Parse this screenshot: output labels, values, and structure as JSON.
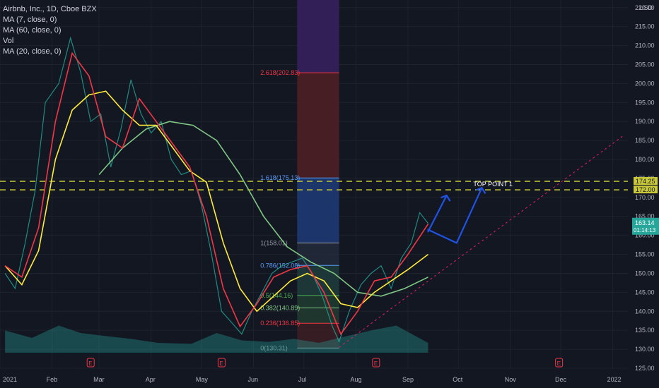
{
  "legend": {
    "title": "Airbnb, Inc., 1D, Cboe BZX",
    "ma7": "MA (7, close, 0)",
    "ma60": "MA (60, close, 0)",
    "vol": "Vol",
    "ma20": "MA (20, close, 0)"
  },
  "price_axis": {
    "currency": "USD",
    "current_price": "163.14",
    "countdown": "01:14:13",
    "level_high": "174.25",
    "level_low": "172.00"
  },
  "chart_data": {
    "type": "candlestick",
    "title": "Airbnb, Inc., 1D, Cboe BZX",
    "ylim": [
      125,
      222
    ],
    "yticks": [
      "125.00",
      "130.00",
      "135.00",
      "140.00",
      "145.00",
      "150.00",
      "155.00",
      "160.00",
      "165.00",
      "170.00",
      "175.00",
      "180.00",
      "185.00",
      "190.00",
      "195.00",
      "200.00",
      "205.00",
      "210.00",
      "215.00",
      "220.00"
    ],
    "xticks": [
      "2021",
      "Feb",
      "Mar",
      "Apr",
      "May",
      "Jun",
      "Jul",
      "Aug",
      "Sep",
      "Oct",
      "Nov",
      "Dec",
      "2022"
    ],
    "grid": true,
    "price_path": [
      [
        "2021-01-04",
        150.0
      ],
      [
        "2021-01-10",
        146.0
      ],
      [
        "2021-01-16",
        158.0
      ],
      [
        "2021-01-22",
        172.0
      ],
      [
        "2021-01-28",
        195.0
      ],
      [
        "2021-02-05",
        200.0
      ],
      [
        "2021-02-12",
        212.0
      ],
      [
        "2021-02-18",
        203.0
      ],
      [
        "2021-02-24",
        190.0
      ],
      [
        "2021-03-02",
        192.0
      ],
      [
        "2021-03-08",
        178.0
      ],
      [
        "2021-03-14",
        188.0
      ],
      [
        "2021-03-20",
        201.0
      ],
      [
        "2021-03-26",
        192.0
      ],
      [
        "2021-04-01",
        187.0
      ],
      [
        "2021-04-07",
        190.0
      ],
      [
        "2021-04-13",
        180.0
      ],
      [
        "2021-04-19",
        176.0
      ],
      [
        "2021-04-25",
        177.0
      ],
      [
        "2021-05-01",
        168.0
      ],
      [
        "2021-05-07",
        155.0
      ],
      [
        "2021-05-13",
        140.0
      ],
      [
        "2021-05-19",
        137.0
      ],
      [
        "2021-05-25",
        134.0
      ],
      [
        "2021-05-31",
        140.0
      ],
      [
        "2021-06-06",
        145.0
      ],
      [
        "2021-06-12",
        150.0
      ],
      [
        "2021-06-18",
        152.0
      ],
      [
        "2021-06-24",
        153.0
      ],
      [
        "2021-06-30",
        154.0
      ],
      [
        "2021-07-06",
        150.0
      ],
      [
        "2021-07-12",
        144.0
      ],
      [
        "2021-07-18",
        136.0
      ],
      [
        "2021-07-22",
        132.0
      ],
      [
        "2021-07-28",
        140.0
      ],
      [
        "2021-08-04",
        147.0
      ],
      [
        "2021-08-10",
        150.0
      ],
      [
        "2021-08-16",
        152.0
      ],
      [
        "2021-08-22",
        146.0
      ],
      [
        "2021-08-28",
        154.0
      ],
      [
        "2021-09-03",
        158.0
      ],
      [
        "2021-09-08",
        166.0
      ],
      [
        "2021-09-13",
        163.14
      ]
    ],
    "ma7_path": [
      [
        "2021-01-04",
        152.0
      ],
      [
        "2021-01-14",
        149.0
      ],
      [
        "2021-01-24",
        162.0
      ],
      [
        "2021-02-03",
        190.0
      ],
      [
        "2021-02-13",
        208.0
      ],
      [
        "2021-02-23",
        202.0
      ],
      [
        "2021-03-05",
        186.0
      ],
      [
        "2021-03-15",
        183.0
      ],
      [
        "2021-03-25",
        196.0
      ],
      [
        "2021-04-04",
        190.0
      ],
      [
        "2021-04-14",
        184.0
      ],
      [
        "2021-04-24",
        178.0
      ],
      [
        "2021-05-04",
        165.0
      ],
      [
        "2021-05-14",
        146.0
      ],
      [
        "2021-05-24",
        136.0
      ],
      [
        "2021-06-03",
        142.0
      ],
      [
        "2021-06-13",
        149.0
      ],
      [
        "2021-06-23",
        151.0
      ],
      [
        "2021-07-03",
        152.0
      ],
      [
        "2021-07-13",
        145.0
      ],
      [
        "2021-07-23",
        134.0
      ],
      [
        "2021-08-02",
        140.0
      ],
      [
        "2021-08-12",
        148.0
      ],
      [
        "2021-08-22",
        149.0
      ],
      [
        "2021-09-01",
        155.0
      ],
      [
        "2021-09-13",
        163.0
      ]
    ],
    "ma20_path": [
      [
        "2021-01-04",
        152.0
      ],
      [
        "2021-01-14",
        147.0
      ],
      [
        "2021-01-24",
        156.0
      ],
      [
        "2021-02-03",
        180.0
      ],
      [
        "2021-02-13",
        193.0
      ],
      [
        "2021-02-23",
        197.0
      ],
      [
        "2021-03-05",
        198.0
      ],
      [
        "2021-03-15",
        193.0
      ],
      [
        "2021-03-25",
        189.0
      ],
      [
        "2021-04-04",
        189.0
      ],
      [
        "2021-04-14",
        183.0
      ],
      [
        "2021-04-24",
        177.0
      ],
      [
        "2021-05-04",
        174.0
      ],
      [
        "2021-05-14",
        158.0
      ],
      [
        "2021-05-24",
        146.0
      ],
      [
        "2021-06-03",
        140.0
      ],
      [
        "2021-06-13",
        144.0
      ],
      [
        "2021-06-23",
        148.0
      ],
      [
        "2021-07-03",
        150.0
      ],
      [
        "2021-07-13",
        148.0
      ],
      [
        "2021-07-23",
        142.0
      ],
      [
        "2021-08-02",
        141.0
      ],
      [
        "2021-08-12",
        145.0
      ],
      [
        "2021-08-22",
        148.0
      ],
      [
        "2021-09-01",
        151.0
      ],
      [
        "2021-09-13",
        155.0
      ]
    ],
    "ma60_path": [
      [
        "2021-03-01",
        176.0
      ],
      [
        "2021-03-15",
        183.0
      ],
      [
        "2021-03-29",
        188.0
      ],
      [
        "2021-04-12",
        190.0
      ],
      [
        "2021-04-26",
        189.0
      ],
      [
        "2021-05-10",
        185.0
      ],
      [
        "2021-05-24",
        176.0
      ],
      [
        "2021-06-07",
        165.0
      ],
      [
        "2021-06-21",
        157.0
      ],
      [
        "2021-07-05",
        153.0
      ],
      [
        "2021-07-19",
        150.0
      ],
      [
        "2021-08-02",
        145.0
      ],
      [
        "2021-08-16",
        144.0
      ],
      [
        "2021-08-30",
        146.0
      ],
      [
        "2021-09-13",
        149.0
      ]
    ],
    "fibonacci": {
      "x_start": "2021-06-27",
      "x_end": "2021-07-22",
      "levels": [
        {
          "label": "0(130.31)",
          "value": 130.31
        },
        {
          "label": "0.236(136.85)",
          "value": 136.85
        },
        {
          "label": "0.382(140.89)",
          "value": 140.89
        },
        {
          "label": "0.5(144.16)",
          "value": 144.16
        },
        {
          "label": "0.786(152.08)",
          "value": 152.08
        },
        {
          "label": "1(158.01)",
          "value": 158.01
        },
        {
          "label": "1.618(175.13)",
          "value": 175.13
        },
        {
          "label": "2.618(202.83)",
          "value": 202.83
        }
      ],
      "top_value": 230
    },
    "hlines": [
      174.25,
      172.0
    ],
    "annotation": {
      "label": "TOP POINT 1",
      "date": "2021-10-15",
      "value": 173.5
    },
    "trendline": {
      "from": [
        "2021-07-22",
        130.5
      ],
      "to": [
        "2022-01-08",
        186.5
      ]
    },
    "volume_ylim": [
      0,
      100
    ],
    "volume_path": [
      [
        "2021-01-04",
        45
      ],
      [
        "2021-01-20",
        30
      ],
      [
        "2021-02-05",
        55
      ],
      [
        "2021-02-18",
        40
      ],
      [
        "2021-03-02",
        35
      ],
      [
        "2021-03-20",
        28
      ],
      [
        "2021-04-05",
        20
      ],
      [
        "2021-04-25",
        18
      ],
      [
        "2021-05-10",
        40
      ],
      [
        "2021-05-25",
        25
      ],
      [
        "2021-06-10",
        22
      ],
      [
        "2021-06-25",
        28
      ],
      [
        "2021-07-10",
        20
      ],
      [
        "2021-07-22",
        30
      ],
      [
        "2021-08-10",
        45
      ],
      [
        "2021-08-25",
        55
      ],
      [
        "2021-09-13",
        20
      ]
    ],
    "event_markers": [
      "2021-02-24",
      "2021-05-13",
      "2021-08-13",
      "2021-11-30"
    ],
    "projection_arrows": [
      {
        "points": [
          [
            "2021-09-13",
            161.0
          ],
          [
            "2021-09-24",
            170.5
          ]
        ]
      },
      {
        "points": [
          [
            "2021-09-13",
            161.5
          ],
          [
            "2021-09-30",
            158.0
          ],
          [
            "2021-10-15",
            172.5
          ]
        ]
      }
    ],
    "colors": {
      "background": "#131722",
      "up": "#26a69a",
      "down": "#ef5350",
      "ma7": "#f23645",
      "ma20": "#ffeb3b",
      "ma60": "#81c784",
      "hline": "#c8c83a",
      "trendline": "#e91e63",
      "annotation": "#1e53e5"
    }
  }
}
